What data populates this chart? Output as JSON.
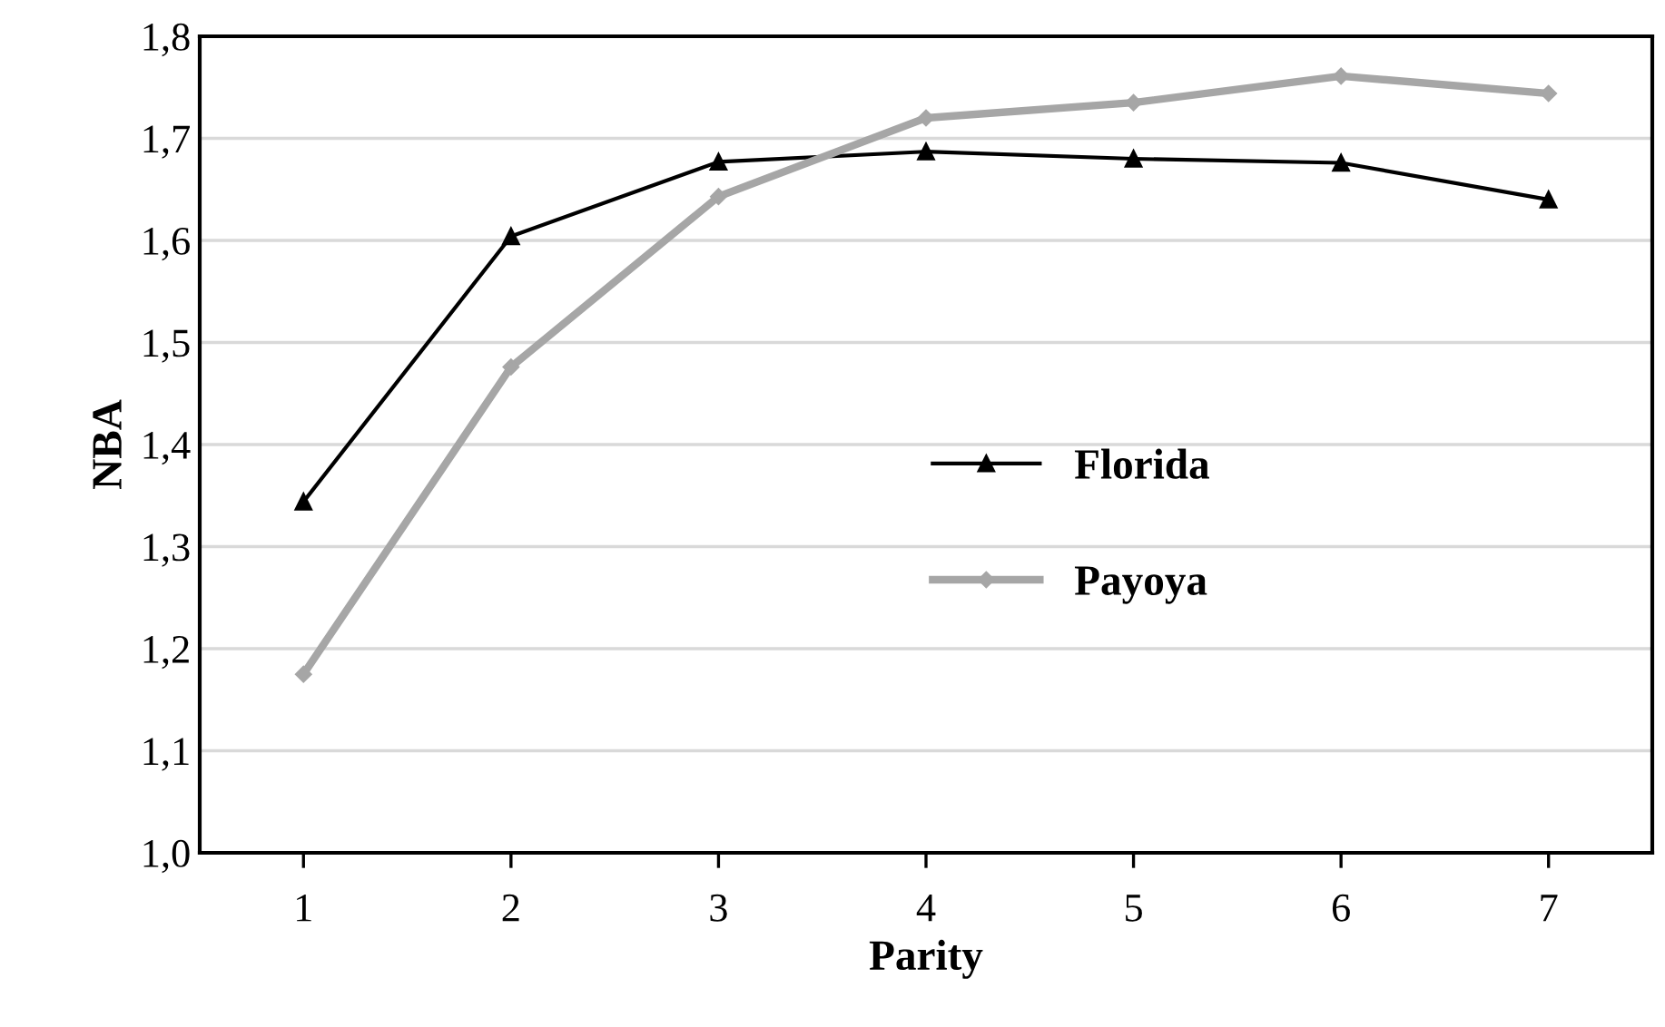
{
  "chart_data": {
    "type": "line",
    "xlabel": "Parity",
    "ylabel": "NBA",
    "categories": [
      "1",
      "2",
      "3",
      "4",
      "5",
      "6",
      "7"
    ],
    "series": [
      {
        "name": "Florida",
        "color": "#000000",
        "marker": "triangle",
        "values": [
          1.344,
          1.604,
          1.677,
          1.687,
          1.68,
          1.676,
          1.64
        ]
      },
      {
        "name": "Payoya",
        "color": "#a6a6a6",
        "marker": "diamond",
        "values": [
          1.175,
          1.476,
          1.643,
          1.72,
          1.735,
          1.761,
          1.744
        ]
      }
    ],
    "ylim": [
      1.0,
      1.8
    ],
    "yticks": [
      {
        "value": 1.0,
        "label": "1,0"
      },
      {
        "value": 1.1,
        "label": "1,1"
      },
      {
        "value": 1.2,
        "label": "1,2"
      },
      {
        "value": 1.3,
        "label": "1,3"
      },
      {
        "value": 1.4,
        "label": "1,4"
      },
      {
        "value": 1.5,
        "label": "1,5"
      },
      {
        "value": 1.6,
        "label": "1,6"
      },
      {
        "value": 1.7,
        "label": "1,7"
      },
      {
        "value": 1.8,
        "label": "1,8"
      }
    ],
    "grid": "y",
    "legend": "center",
    "line_style": "solid"
  }
}
